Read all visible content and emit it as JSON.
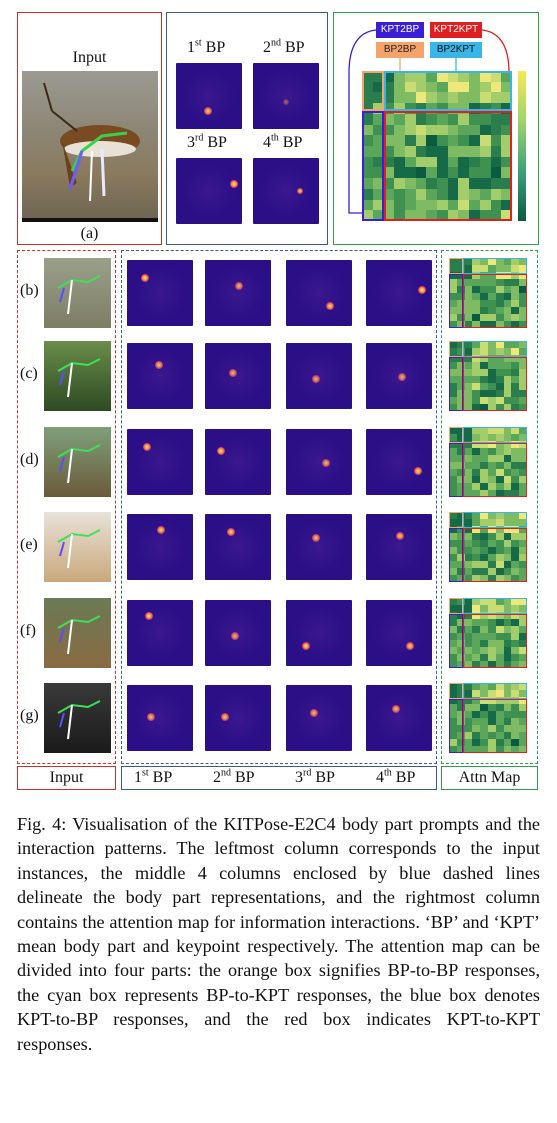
{
  "figure": {
    "input_title": "Input",
    "panel_a_label": "(a)",
    "bp_headers": [
      {
        "n": "1",
        "sup": "st",
        "suffix": " BP"
      },
      {
        "n": "2",
        "sup": "nd",
        "suffix": " BP"
      },
      {
        "n": "3",
        "sup": "rd",
        "suffix": " BP"
      },
      {
        "n": "4",
        "sup": "th",
        "suffix": " BP"
      }
    ],
    "legend": {
      "kpt2bp": "KPT2BP",
      "kpt2kpt": "KPT2KPT",
      "bp2bp": "BP2BP",
      "bp2kpt": "BP2KPT"
    },
    "row_labels": [
      "(b)",
      "(c)",
      "(d)",
      "(e)",
      "(f)",
      "(g)"
    ],
    "footer": {
      "input": "Input",
      "attn": "Attn Map"
    },
    "colors": {
      "red": "#d62b2b",
      "blue": "#3a5a94",
      "green": "#2aa04a",
      "kpt2bp": "#3b1fd6",
      "kpt2kpt": "#e02020",
      "bp2bp": "#f4a46a",
      "bp2kpt": "#38b6e8",
      "heat_bg": "#2a0f86"
    }
  },
  "caption": "Fig. 4: Visualisation of the KITPose-E2C4 body part prompts and the interaction patterns. The leftmost column corresponds to the input instances, the middle 4 columns enclosed by blue dashed lines delineate the body part representations, and the rightmost column contains the attention map for information interactions. ‘BP’ and ‘KPT’ mean body part and keypoint respectively. The attention map can be divided into four parts: the orange box signifies BP-to-BP responses, the cyan box represents BP-to-KPT responses, the blue box denotes KPT-to-BP responses, and the red box indicates KPT-to-KPT responses."
}
